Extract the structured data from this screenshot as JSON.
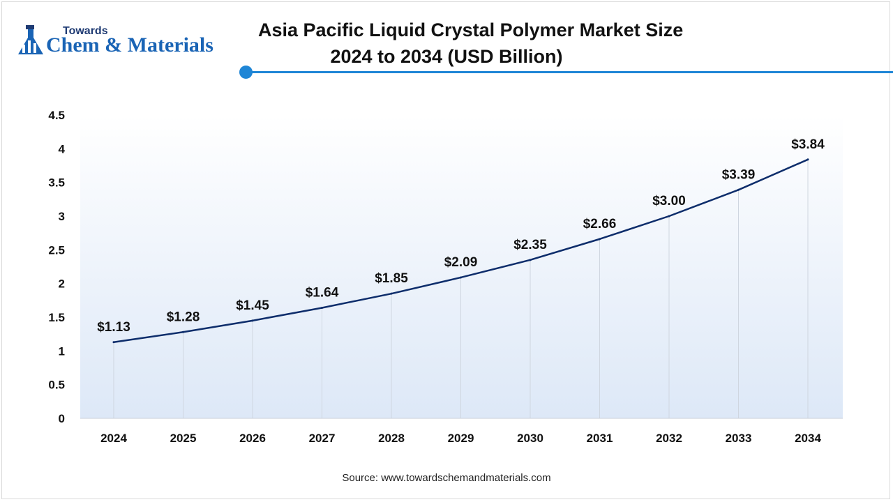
{
  "logo": {
    "line1": "Towards",
    "line2": "Chem & Materials"
  },
  "title": {
    "line1": "Asia Pacific Liquid Crystal Polymer Market Size",
    "line2": "2024 to 2034 (USD Billion)"
  },
  "source": "Source: www.towardschemandmaterials.com",
  "colors": {
    "line": "#0d2d6b",
    "accent": "#1f86d6",
    "plot_top": "#ffffff",
    "plot_bottom": "#dde8f7"
  },
  "chart_data": {
    "type": "line",
    "title": "Asia Pacific Liquid Crystal Polymer Market Size 2024 to 2034 (USD Billion)",
    "categories": [
      "2024",
      "2025",
      "2026",
      "2027",
      "2028",
      "2029",
      "2030",
      "2031",
      "2032",
      "2033",
      "2034"
    ],
    "values": [
      1.13,
      1.28,
      1.45,
      1.64,
      1.85,
      2.09,
      2.35,
      2.66,
      3.0,
      3.39,
      3.84
    ],
    "labels": [
      "$1.13",
      "$1.28",
      "$1.45",
      "$1.64",
      "$1.85",
      "$2.09",
      "$2.35",
      "$2.66",
      "$3.00",
      "$3.39",
      "$3.84"
    ],
    "y_ticks": [
      "0",
      "0.5",
      "1",
      "1.5",
      "2",
      "2.5",
      "3",
      "3.5",
      "4",
      "4.5"
    ],
    "ylim": [
      0,
      4.5
    ],
    "grid": "vertical drop lines",
    "legend": "none"
  }
}
